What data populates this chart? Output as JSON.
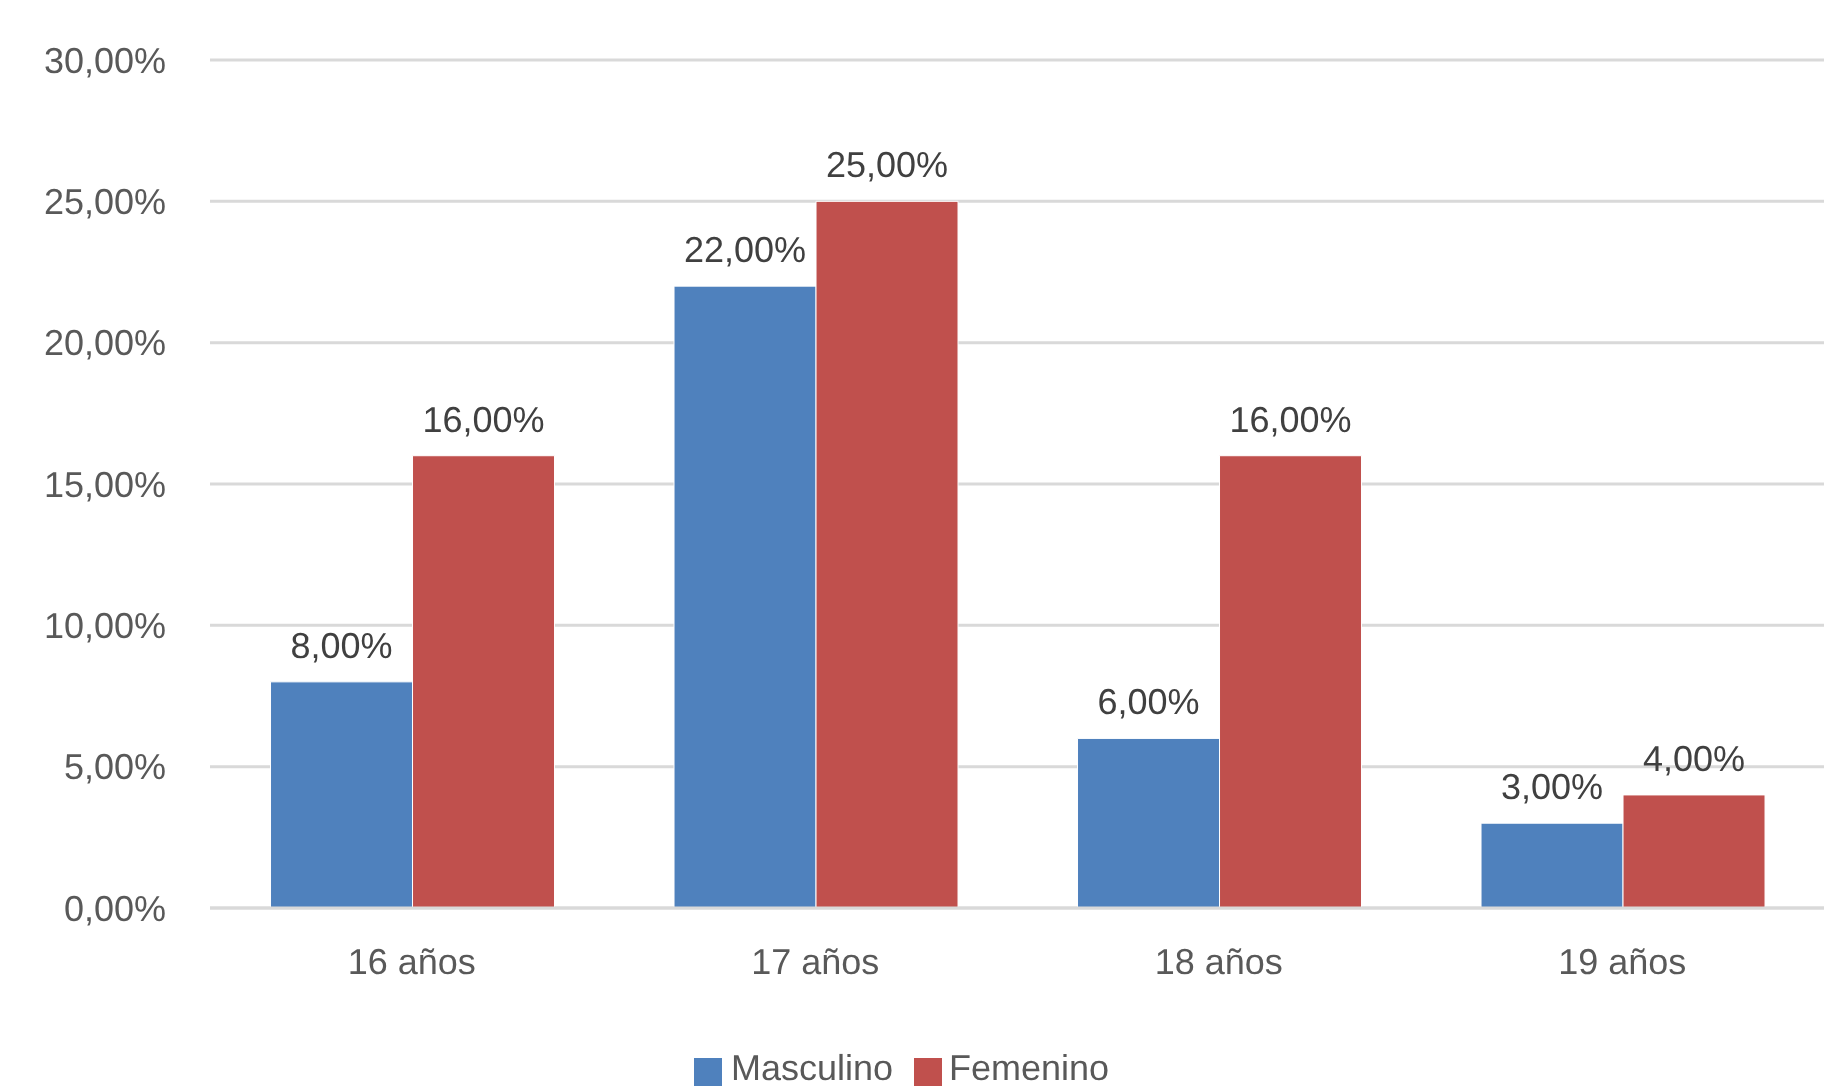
{
  "chart_data": {
    "type": "bar",
    "categories": [
      "16 años",
      "17 años",
      "18 años",
      "19 años"
    ],
    "series": [
      {
        "name": "Masculino",
        "color": "#4f81bd",
        "values": [
          8,
          22,
          6,
          3
        ],
        "value_labels": [
          "8,00%",
          "22,00%",
          "6,00%",
          "3,00%"
        ]
      },
      {
        "name": "Femenino",
        "color": "#c0504d",
        "values": [
          16,
          25,
          16,
          4
        ],
        "value_labels": [
          "16,00%",
          "25,00%",
          "16,00%",
          "4,00%"
        ]
      }
    ],
    "ylim": [
      0,
      30
    ],
    "yticks": [
      {
        "value": 0,
        "label": "0,00%"
      },
      {
        "value": 5,
        "label": "5,00%"
      },
      {
        "value": 10,
        "label": "10,00%"
      },
      {
        "value": 15,
        "label": "15,00%"
      },
      {
        "value": 20,
        "label": "20,00%"
      },
      {
        "value": 25,
        "label": "25,00%"
      },
      {
        "value": 30,
        "label": "30,00%"
      }
    ],
    "grid": "y",
    "legend": "bottom"
  }
}
